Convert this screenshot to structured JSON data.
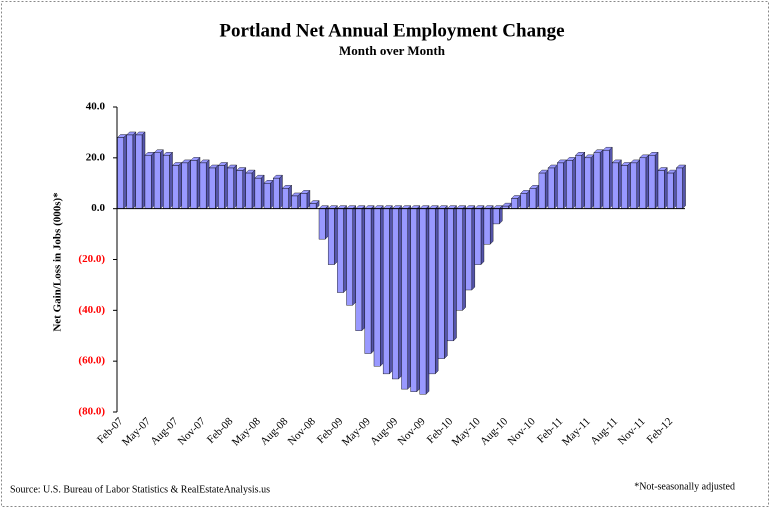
{
  "chart_data": {
    "type": "bar",
    "title": "Portland Net Annual Employment Change",
    "subtitle": "Month over Month",
    "y_axis_label": "Net Gain/Loss in Jobs (000s)*",
    "source": "Source: U.S. Bureau of Labor Statistics & RealEstateAnalysis.us",
    "footnote": "*Not-seasonally adjusted",
    "categories": [
      "Feb-07",
      null,
      null,
      "May-07",
      null,
      null,
      "Aug-07",
      null,
      null,
      "Nov-07",
      null,
      null,
      "Feb-08",
      null,
      null,
      "May-08",
      null,
      null,
      "Aug-08",
      null,
      null,
      "Nov-08",
      null,
      null,
      "Feb-09",
      null,
      null,
      "May-09",
      null,
      null,
      "Aug-09",
      null,
      null,
      "Nov-09",
      null,
      null,
      "Feb-10",
      null,
      null,
      "May-10",
      null,
      null,
      "Aug-10",
      null,
      null,
      "Nov-10",
      null,
      null,
      "Feb-11",
      null,
      null,
      "May-11",
      null,
      null,
      "Aug-11",
      null,
      null,
      "Nov-11",
      null,
      null,
      "Feb-12",
      null
    ],
    "values": [
      28,
      29,
      29,
      21,
      22,
      21,
      17,
      18,
      19,
      18,
      16,
      17,
      16,
      15,
      14,
      12,
      10,
      12,
      8,
      5,
      6,
      2,
      -12,
      -22,
      -33,
      -38,
      -48,
      -57,
      -62,
      -65,
      -67,
      -71,
      -72,
      -73,
      -65,
      -59,
      -52,
      -40,
      -32,
      -22,
      -14,
      -6,
      1,
      4,
      6,
      8,
      14,
      16,
      18,
      19,
      21,
      20,
      22,
      23,
      18,
      17,
      18,
      20,
      21,
      15,
      14,
      16
    ],
    "color": "#9999ff",
    "side_color": "#5555aa",
    "negative_tick_color": "#ff0000",
    "ylim": [
      -80,
      40
    ],
    "yticks": [
      {
        "value": -80,
        "label": "(80.0)"
      },
      {
        "value": -60,
        "label": "(60.0)"
      },
      {
        "value": -40,
        "label": "(40.0)"
      },
      {
        "value": -20,
        "label": "(20.0)"
      },
      {
        "value": 0,
        "label": "0.0"
      },
      {
        "value": 20,
        "label": "20.0"
      },
      {
        "value": 40,
        "label": "40.0"
      }
    ]
  }
}
